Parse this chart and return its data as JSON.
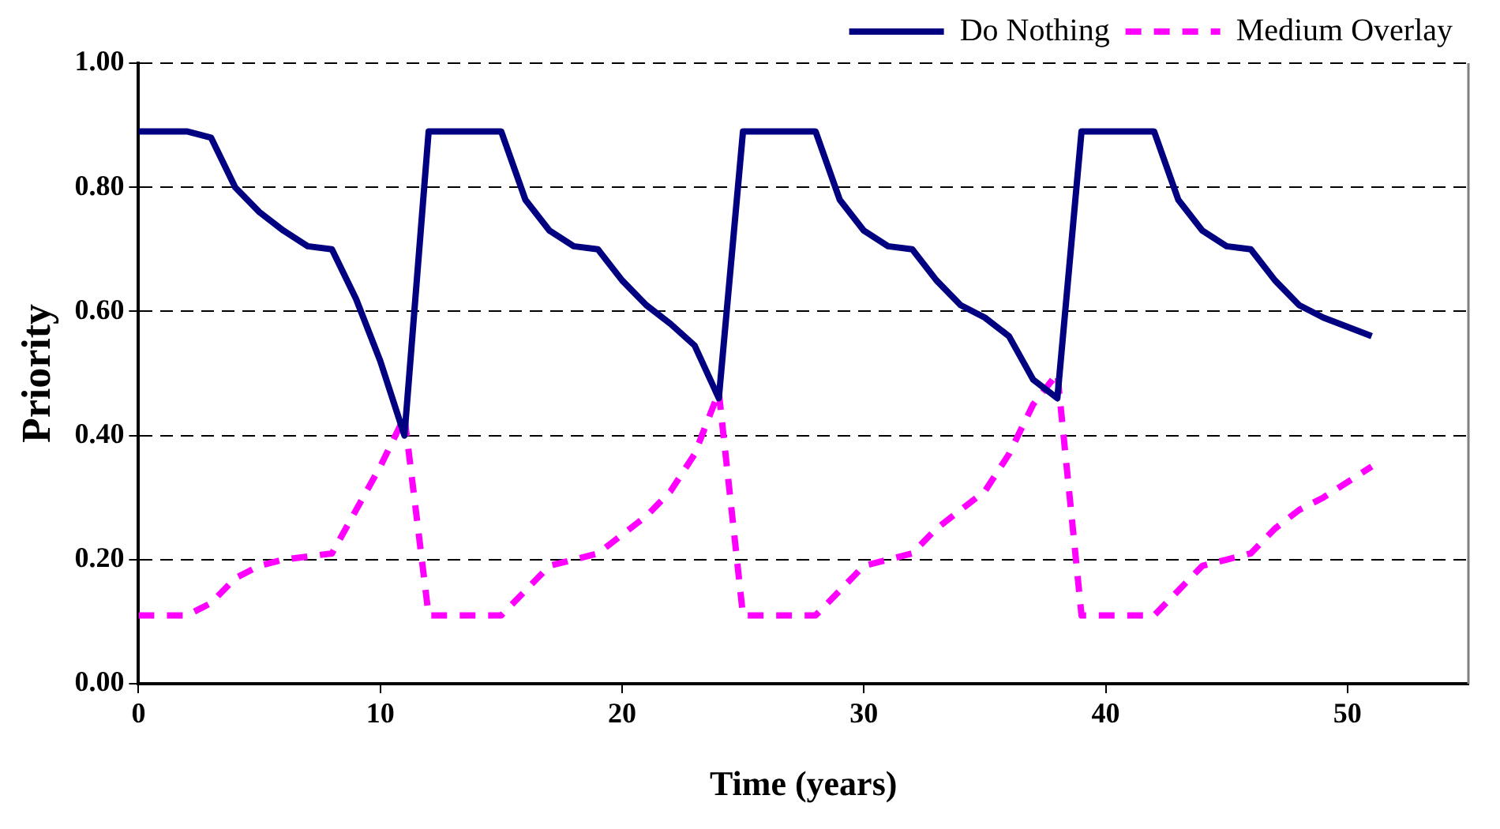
{
  "chart_data": {
    "type": "line",
    "xlabel": "Time (years)",
    "ylabel": "Priority",
    "x": [
      0,
      1,
      2,
      3,
      4,
      5,
      6,
      7,
      8,
      9,
      10,
      11,
      12,
      13,
      14,
      15,
      16,
      17,
      18,
      19,
      20,
      21,
      22,
      23,
      24,
      25,
      26,
      27,
      28,
      29,
      30,
      31,
      32,
      33,
      34,
      35,
      36,
      37,
      38,
      39,
      40,
      41,
      42,
      43,
      44,
      45,
      46,
      47,
      48,
      49,
      50,
      51
    ],
    "series": [
      {
        "name": "Do Nothing",
        "color": "#000080",
        "line_style": "solid",
        "values": [
          0.89,
          0.89,
          0.89,
          0.88,
          0.8,
          0.76,
          0.73,
          0.705,
          0.7,
          0.62,
          0.52,
          0.4,
          0.89,
          0.89,
          0.89,
          0.89,
          0.78,
          0.73,
          0.705,
          0.7,
          0.65,
          0.61,
          0.58,
          0.545,
          0.46,
          0.89,
          0.89,
          0.89,
          0.89,
          0.78,
          0.73,
          0.705,
          0.7,
          0.65,
          0.61,
          0.59,
          0.56,
          0.49,
          0.46,
          0.89,
          0.89,
          0.89,
          0.89,
          0.78,
          0.73,
          0.705,
          0.7,
          0.65,
          0.61,
          0.59,
          0.575,
          0.56
        ]
      },
      {
        "name": "Medium Overlay",
        "color": "#ff00ff",
        "line_style": "dashed",
        "values": [
          0.11,
          0.11,
          0.11,
          0.13,
          0.17,
          0.19,
          0.2,
          0.205,
          0.21,
          0.28,
          0.35,
          0.43,
          0.11,
          0.11,
          0.11,
          0.11,
          0.15,
          0.19,
          0.2,
          0.21,
          0.24,
          0.27,
          0.31,
          0.37,
          0.47,
          0.11,
          0.11,
          0.11,
          0.11,
          0.15,
          0.19,
          0.2,
          0.21,
          0.25,
          0.28,
          0.31,
          0.37,
          0.45,
          0.5,
          0.11,
          0.11,
          0.11,
          0.11,
          0.15,
          0.19,
          0.2,
          0.21,
          0.25,
          0.28,
          0.3,
          0.325,
          0.35
        ]
      }
    ],
    "xlim": [
      0,
      55
    ],
    "xticks": [
      0,
      10,
      20,
      30,
      40,
      50
    ],
    "ylim": [
      0,
      1
    ],
    "yticks": [
      {
        "value": 0,
        "label": "0.00"
      },
      {
        "value": 0.2,
        "label": "0.20"
      },
      {
        "value": 0.4,
        "label": "0.40"
      },
      {
        "value": 0.6,
        "label": "0.60"
      },
      {
        "value": 0.8,
        "label": "0.80"
      },
      {
        "value": 1,
        "label": "1.00"
      }
    ],
    "grid": "y",
    "legend": "top right",
    "marker": "none"
  }
}
